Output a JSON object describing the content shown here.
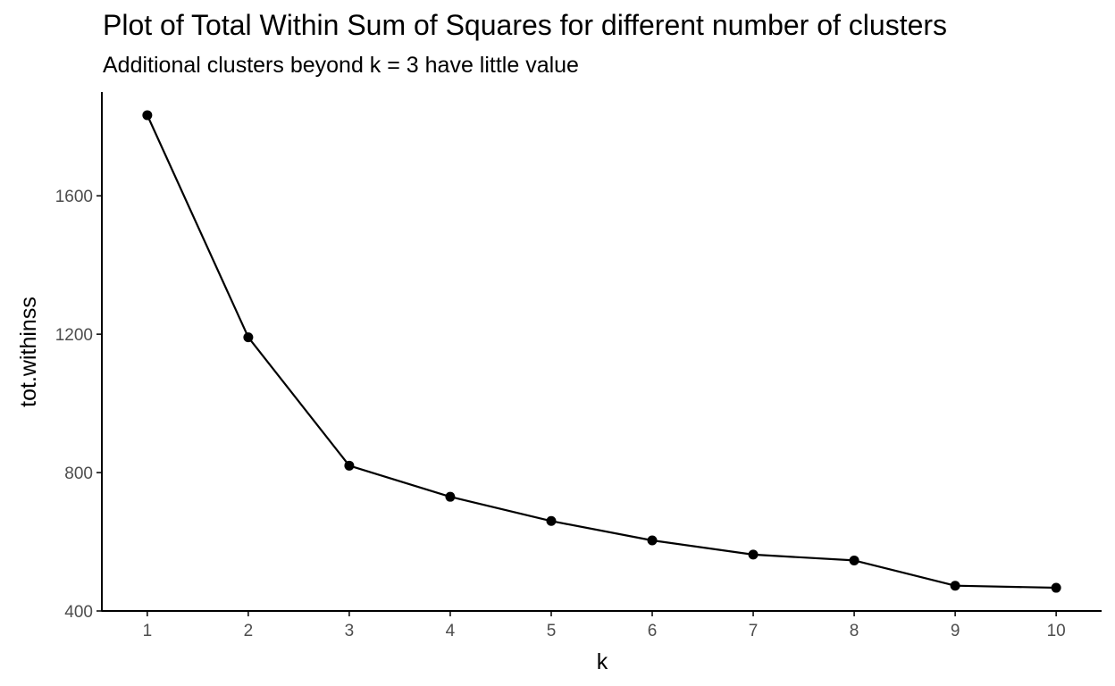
{
  "chart_data": {
    "type": "line",
    "title": "Plot of Total Within Sum of Squares for different number of clusters",
    "subtitle": "Additional clusters beyond k = 3 have little value",
    "xlabel": "k",
    "ylabel": "tot.withinss",
    "x": [
      1,
      2,
      3,
      4,
      5,
      6,
      7,
      8,
      9,
      10
    ],
    "series": [
      {
        "values": [
          1833,
          1191,
          820,
          730,
          660,
          604,
          563,
          546,
          473,
          467
        ]
      }
    ],
    "xticks": [
      "1",
      "2",
      "3",
      "4",
      "5",
      "6",
      "7",
      "8",
      "9",
      "10"
    ],
    "yticks": [
      "400",
      "800",
      "1200",
      "1600"
    ],
    "xlim": [
      0.55,
      10.45
    ],
    "ylim": [
      400,
      1900
    ],
    "grid": false,
    "legend": "none",
    "colors": {
      "line": "#000000",
      "point": "#000000",
      "axis": "#000000",
      "tick_text": "#4d4d4d"
    }
  }
}
